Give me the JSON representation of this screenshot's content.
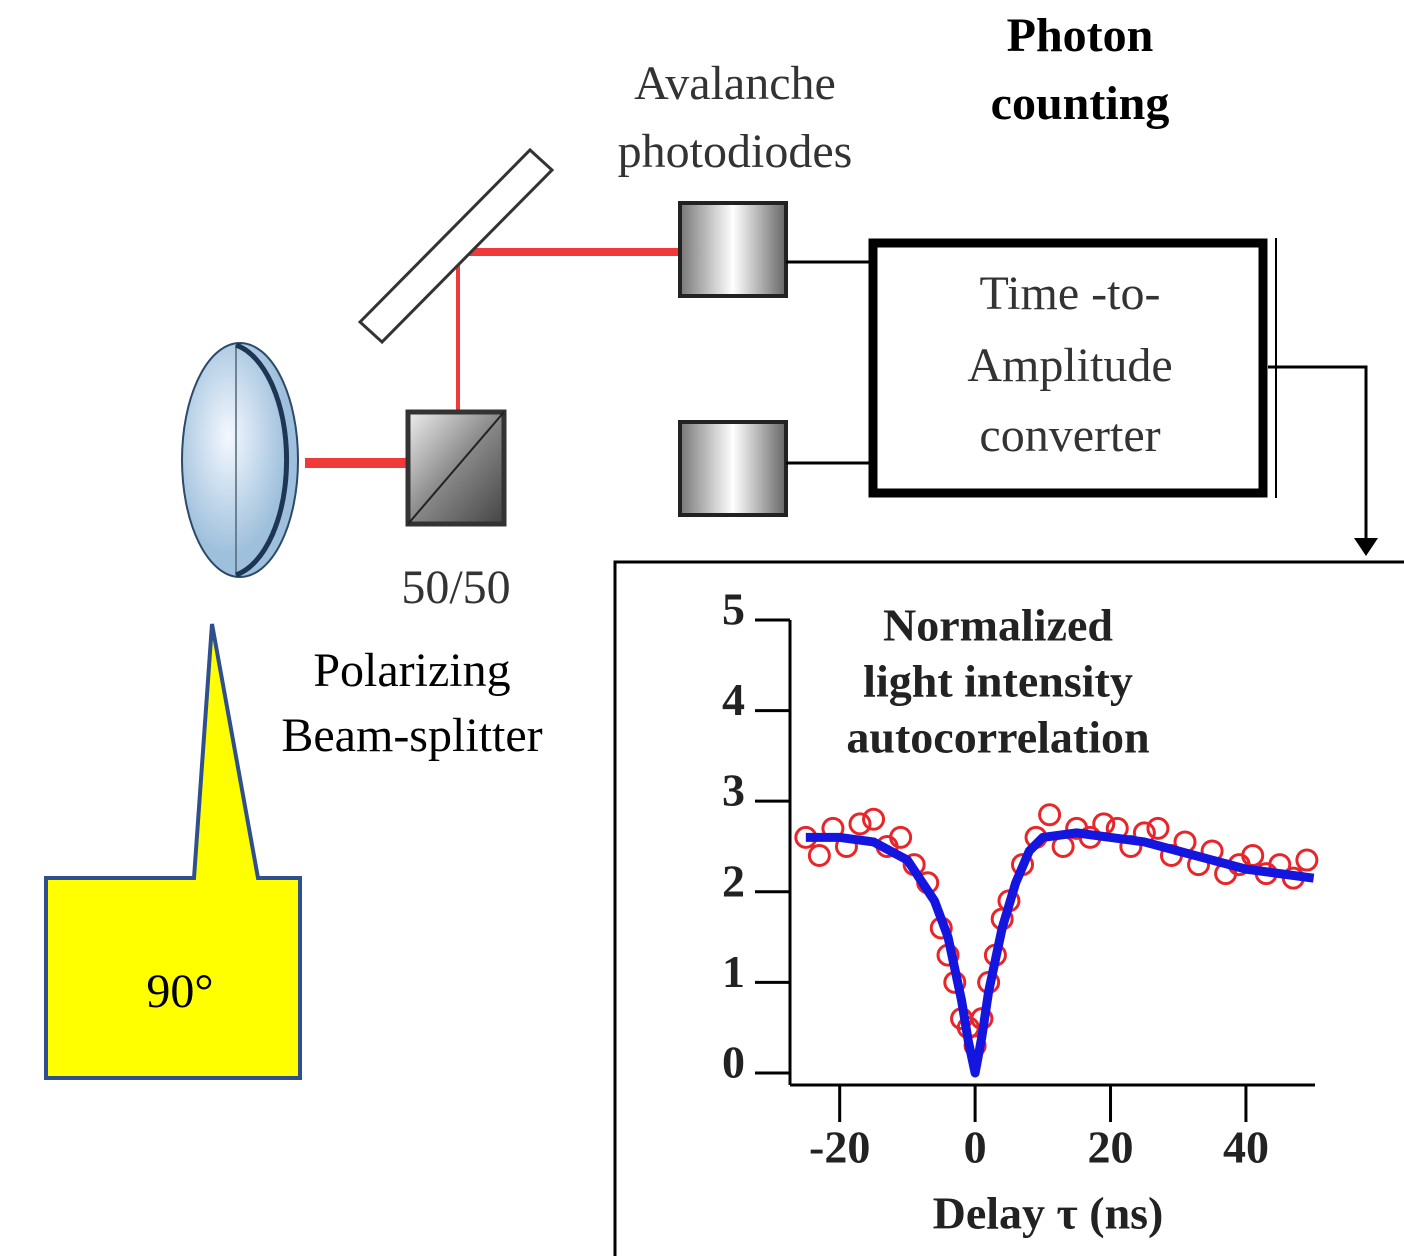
{
  "labels": {
    "photon_counting": [
      "Photon",
      "counting"
    ],
    "detectors": [
      "Avalanche",
      "photodiodes"
    ],
    "converter": [
      "Time -to-",
      "Amplitude",
      "converter"
    ],
    "ratio": "50/50",
    "splitter": [
      "Polarizing",
      "Beam-splitter"
    ],
    "callout": "90°"
  },
  "chart_data": {
    "type": "line",
    "title": [
      "Normalized",
      "light intensity",
      "autocorrelation"
    ],
    "xlabel": "Delay τ (ns)",
    "xlim": [
      -26.6,
      50.2
    ],
    "ylim": [
      -0.1,
      5
    ],
    "xticks": [
      -20,
      0,
      20,
      40
    ],
    "yticks": [
      0,
      1,
      2,
      3,
      4,
      5
    ],
    "series": [
      {
        "style": "markers",
        "color": "#e8262a",
        "x": [
          -25,
          -23,
          -21,
          -19,
          -17,
          -15,
          -13,
          -11,
          -9,
          -7,
          -5,
          -4,
          -3,
          -2,
          -1,
          0,
          1,
          2,
          3,
          4,
          5,
          7,
          9,
          11,
          13,
          15,
          17,
          19,
          21,
          23,
          25,
          27,
          29,
          31,
          33,
          35,
          37,
          39,
          41,
          43,
          45,
          47,
          49
        ],
        "values": [
          2.6,
          2.4,
          2.7,
          2.5,
          2.75,
          2.8,
          2.5,
          2.6,
          2.3,
          2.1,
          1.6,
          1.3,
          1.0,
          0.6,
          0.5,
          0.3,
          0.6,
          1.0,
          1.3,
          1.7,
          1.9,
          2.3,
          2.6,
          2.85,
          2.5,
          2.7,
          2.6,
          2.75,
          2.7,
          2.5,
          2.65,
          2.7,
          2.4,
          2.55,
          2.3,
          2.45,
          2.2,
          2.3,
          2.4,
          2.2,
          2.3,
          2.15,
          2.35
        ]
      },
      {
        "style": "line",
        "color": "#1515e0",
        "x": [
          -25,
          -20,
          -15,
          -10,
          -6,
          -4,
          -2,
          -1,
          0,
          1,
          2,
          4,
          6,
          8,
          10,
          15,
          20,
          25,
          30,
          35,
          40,
          45,
          50
        ],
        "values": [
          2.6,
          2.6,
          2.55,
          2.35,
          1.9,
          1.5,
          0.8,
          0.35,
          0.0,
          0.4,
          0.9,
          1.6,
          2.1,
          2.45,
          2.6,
          2.65,
          2.6,
          2.55,
          2.45,
          2.35,
          2.25,
          2.2,
          2.15
        ]
      }
    ]
  }
}
